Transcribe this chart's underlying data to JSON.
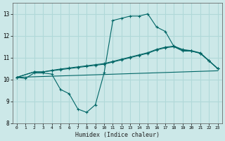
{
  "title": "",
  "xlabel": "Humidex (Indice chaleur)",
  "ylabel": "",
  "background_color": "#cce8e8",
  "grid_color": "#b0d8d8",
  "line_color": "#006666",
  "xlim": [
    -0.5,
    23.5
  ],
  "ylim": [
    8.0,
    13.5
  ],
  "xticks": [
    0,
    1,
    2,
    3,
    4,
    5,
    6,
    7,
    8,
    9,
    10,
    11,
    12,
    13,
    14,
    15,
    16,
    17,
    18,
    19,
    20,
    21,
    22,
    23
  ],
  "yticks": [
    8,
    9,
    10,
    11,
    12,
    13
  ],
  "line1_x": [
    0,
    1,
    2,
    3,
    4,
    5,
    6,
    7,
    8,
    9,
    10,
    11,
    12,
    13,
    14,
    15,
    16,
    17,
    18,
    19,
    20,
    21,
    22,
    23
  ],
  "line1_y": [
    10.1,
    10.05,
    10.3,
    10.3,
    10.25,
    9.55,
    9.35,
    8.65,
    8.5,
    8.85,
    10.3,
    12.7,
    12.8,
    12.9,
    12.9,
    13.0,
    12.4,
    12.2,
    11.5,
    11.3,
    11.3,
    11.2,
    10.85,
    10.5
  ],
  "line2_x": [
    0,
    2,
    3,
    4,
    5,
    6,
    7,
    8,
    9,
    10,
    11,
    12,
    13,
    14,
    15,
    16,
    17,
    18,
    19,
    20,
    21,
    22,
    23
  ],
  "line2_y": [
    10.1,
    10.35,
    10.35,
    10.4,
    10.45,
    10.5,
    10.55,
    10.6,
    10.65,
    10.7,
    10.8,
    10.9,
    11.0,
    11.1,
    11.2,
    11.35,
    11.45,
    11.5,
    11.35,
    11.3,
    11.2,
    10.85,
    10.5
  ],
  "line3_x": [
    0,
    2,
    3,
    4,
    5,
    6,
    7,
    8,
    9,
    10,
    11,
    12,
    13,
    14,
    15,
    16,
    17,
    18,
    19,
    20,
    21,
    22,
    23
  ],
  "line3_y": [
    10.1,
    10.35,
    10.35,
    10.42,
    10.48,
    10.53,
    10.58,
    10.63,
    10.68,
    10.73,
    10.83,
    10.93,
    11.03,
    11.13,
    11.23,
    11.38,
    11.48,
    11.53,
    11.37,
    11.32,
    11.22,
    10.87,
    10.5
  ],
  "line4_x": [
    0,
    23
  ],
  "line4_y": [
    10.1,
    10.4
  ]
}
